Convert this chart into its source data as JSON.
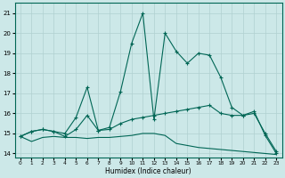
{
  "xlabel": "Humidex (Indice chaleur)",
  "xlim": [
    -0.5,
    23.5
  ],
  "ylim": [
    13.8,
    21.5
  ],
  "yticks": [
    14,
    15,
    16,
    17,
    18,
    19,
    20,
    21
  ],
  "xticks": [
    0,
    1,
    2,
    3,
    4,
    5,
    6,
    7,
    8,
    9,
    10,
    11,
    12,
    13,
    14,
    15,
    16,
    17,
    18,
    19,
    20,
    21,
    22,
    23
  ],
  "background_color": "#cce8e8",
  "grid_color": "#b0d0d0",
  "line_color": "#006655",
  "line1_nomarker": {
    "x": [
      0,
      1,
      2,
      3,
      4,
      5,
      6,
      7,
      8,
      9,
      10,
      11,
      12,
      13,
      14,
      15,
      16,
      17,
      18,
      19,
      20,
      21,
      22,
      23
    ],
    "y": [
      14.85,
      14.6,
      14.8,
      14.85,
      14.8,
      14.8,
      14.75,
      14.8,
      14.8,
      14.85,
      14.9,
      15.0,
      15.0,
      14.9,
      14.5,
      14.4,
      14.3,
      14.25,
      14.2,
      14.15,
      14.1,
      14.05,
      14.0,
      13.95
    ]
  },
  "line2_marker": {
    "x": [
      0,
      1,
      2,
      3,
      4,
      5,
      6,
      7,
      8,
      9,
      10,
      11,
      12,
      13,
      14,
      15,
      16,
      17,
      18,
      19,
      20,
      21,
      22,
      23
    ],
    "y": [
      14.85,
      15.1,
      15.2,
      15.1,
      14.85,
      15.2,
      15.9,
      15.15,
      15.2,
      15.5,
      15.7,
      15.8,
      15.9,
      16.0,
      16.1,
      16.2,
      16.3,
      16.4,
      16.0,
      15.9,
      15.9,
      16.0,
      15.0,
      14.1
    ]
  },
  "line3_marker": {
    "x": [
      0,
      1,
      2,
      3,
      4,
      5,
      6,
      7,
      8,
      9,
      10,
      11,
      12,
      13,
      14,
      15,
      16,
      17,
      18,
      19,
      20,
      21,
      22,
      23
    ],
    "y": [
      14.85,
      15.1,
      15.2,
      15.1,
      15.0,
      15.8,
      17.3,
      15.15,
      15.3,
      17.1,
      19.5,
      21.0,
      15.7,
      20.0,
      19.1,
      18.5,
      19.0,
      18.9,
      17.8,
      16.3,
      15.9,
      16.1,
      14.9,
      14.0
    ]
  }
}
